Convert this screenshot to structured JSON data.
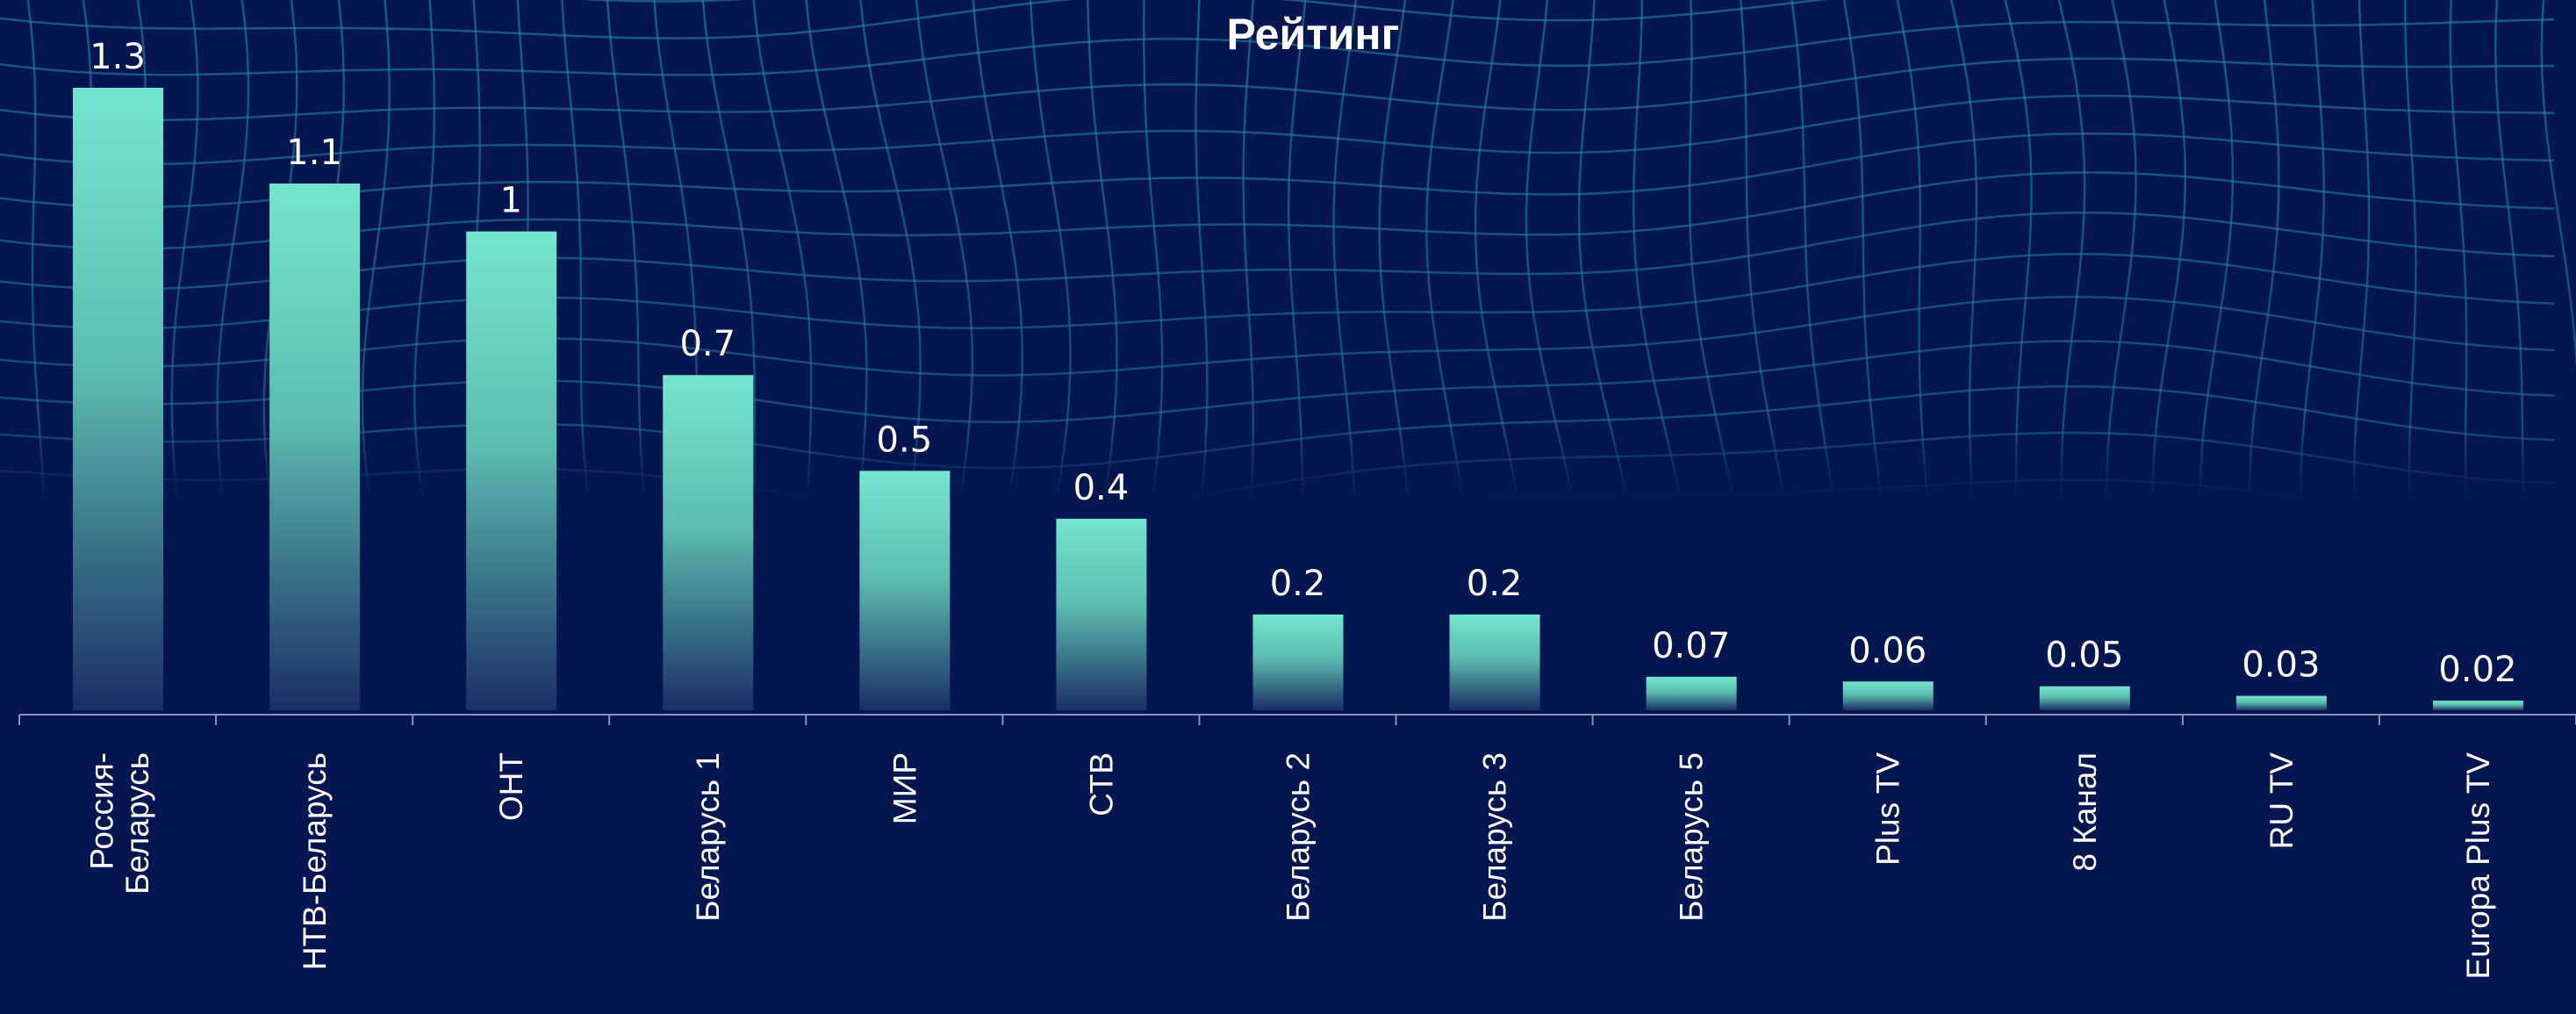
{
  "chart_data": {
    "type": "bar",
    "title": "Рейтинг",
    "categories": [
      "Россия-Беларусь",
      "НТВ-Беларусь",
      "ОНТ",
      "Беларусь 1",
      "МИР",
      "СТВ",
      "Беларусь 2",
      "Беларусь 3",
      "Беларусь 5",
      "Plus TV",
      "8 Канал",
      "RU TV",
      "Europa Plus TV"
    ],
    "values": [
      1.3,
      1.1,
      1,
      0.7,
      0.5,
      0.4,
      0.2,
      0.2,
      0.07,
      0.06,
      0.05,
      0.03,
      0.02
    ],
    "color": "#72e3cc"
  }
}
